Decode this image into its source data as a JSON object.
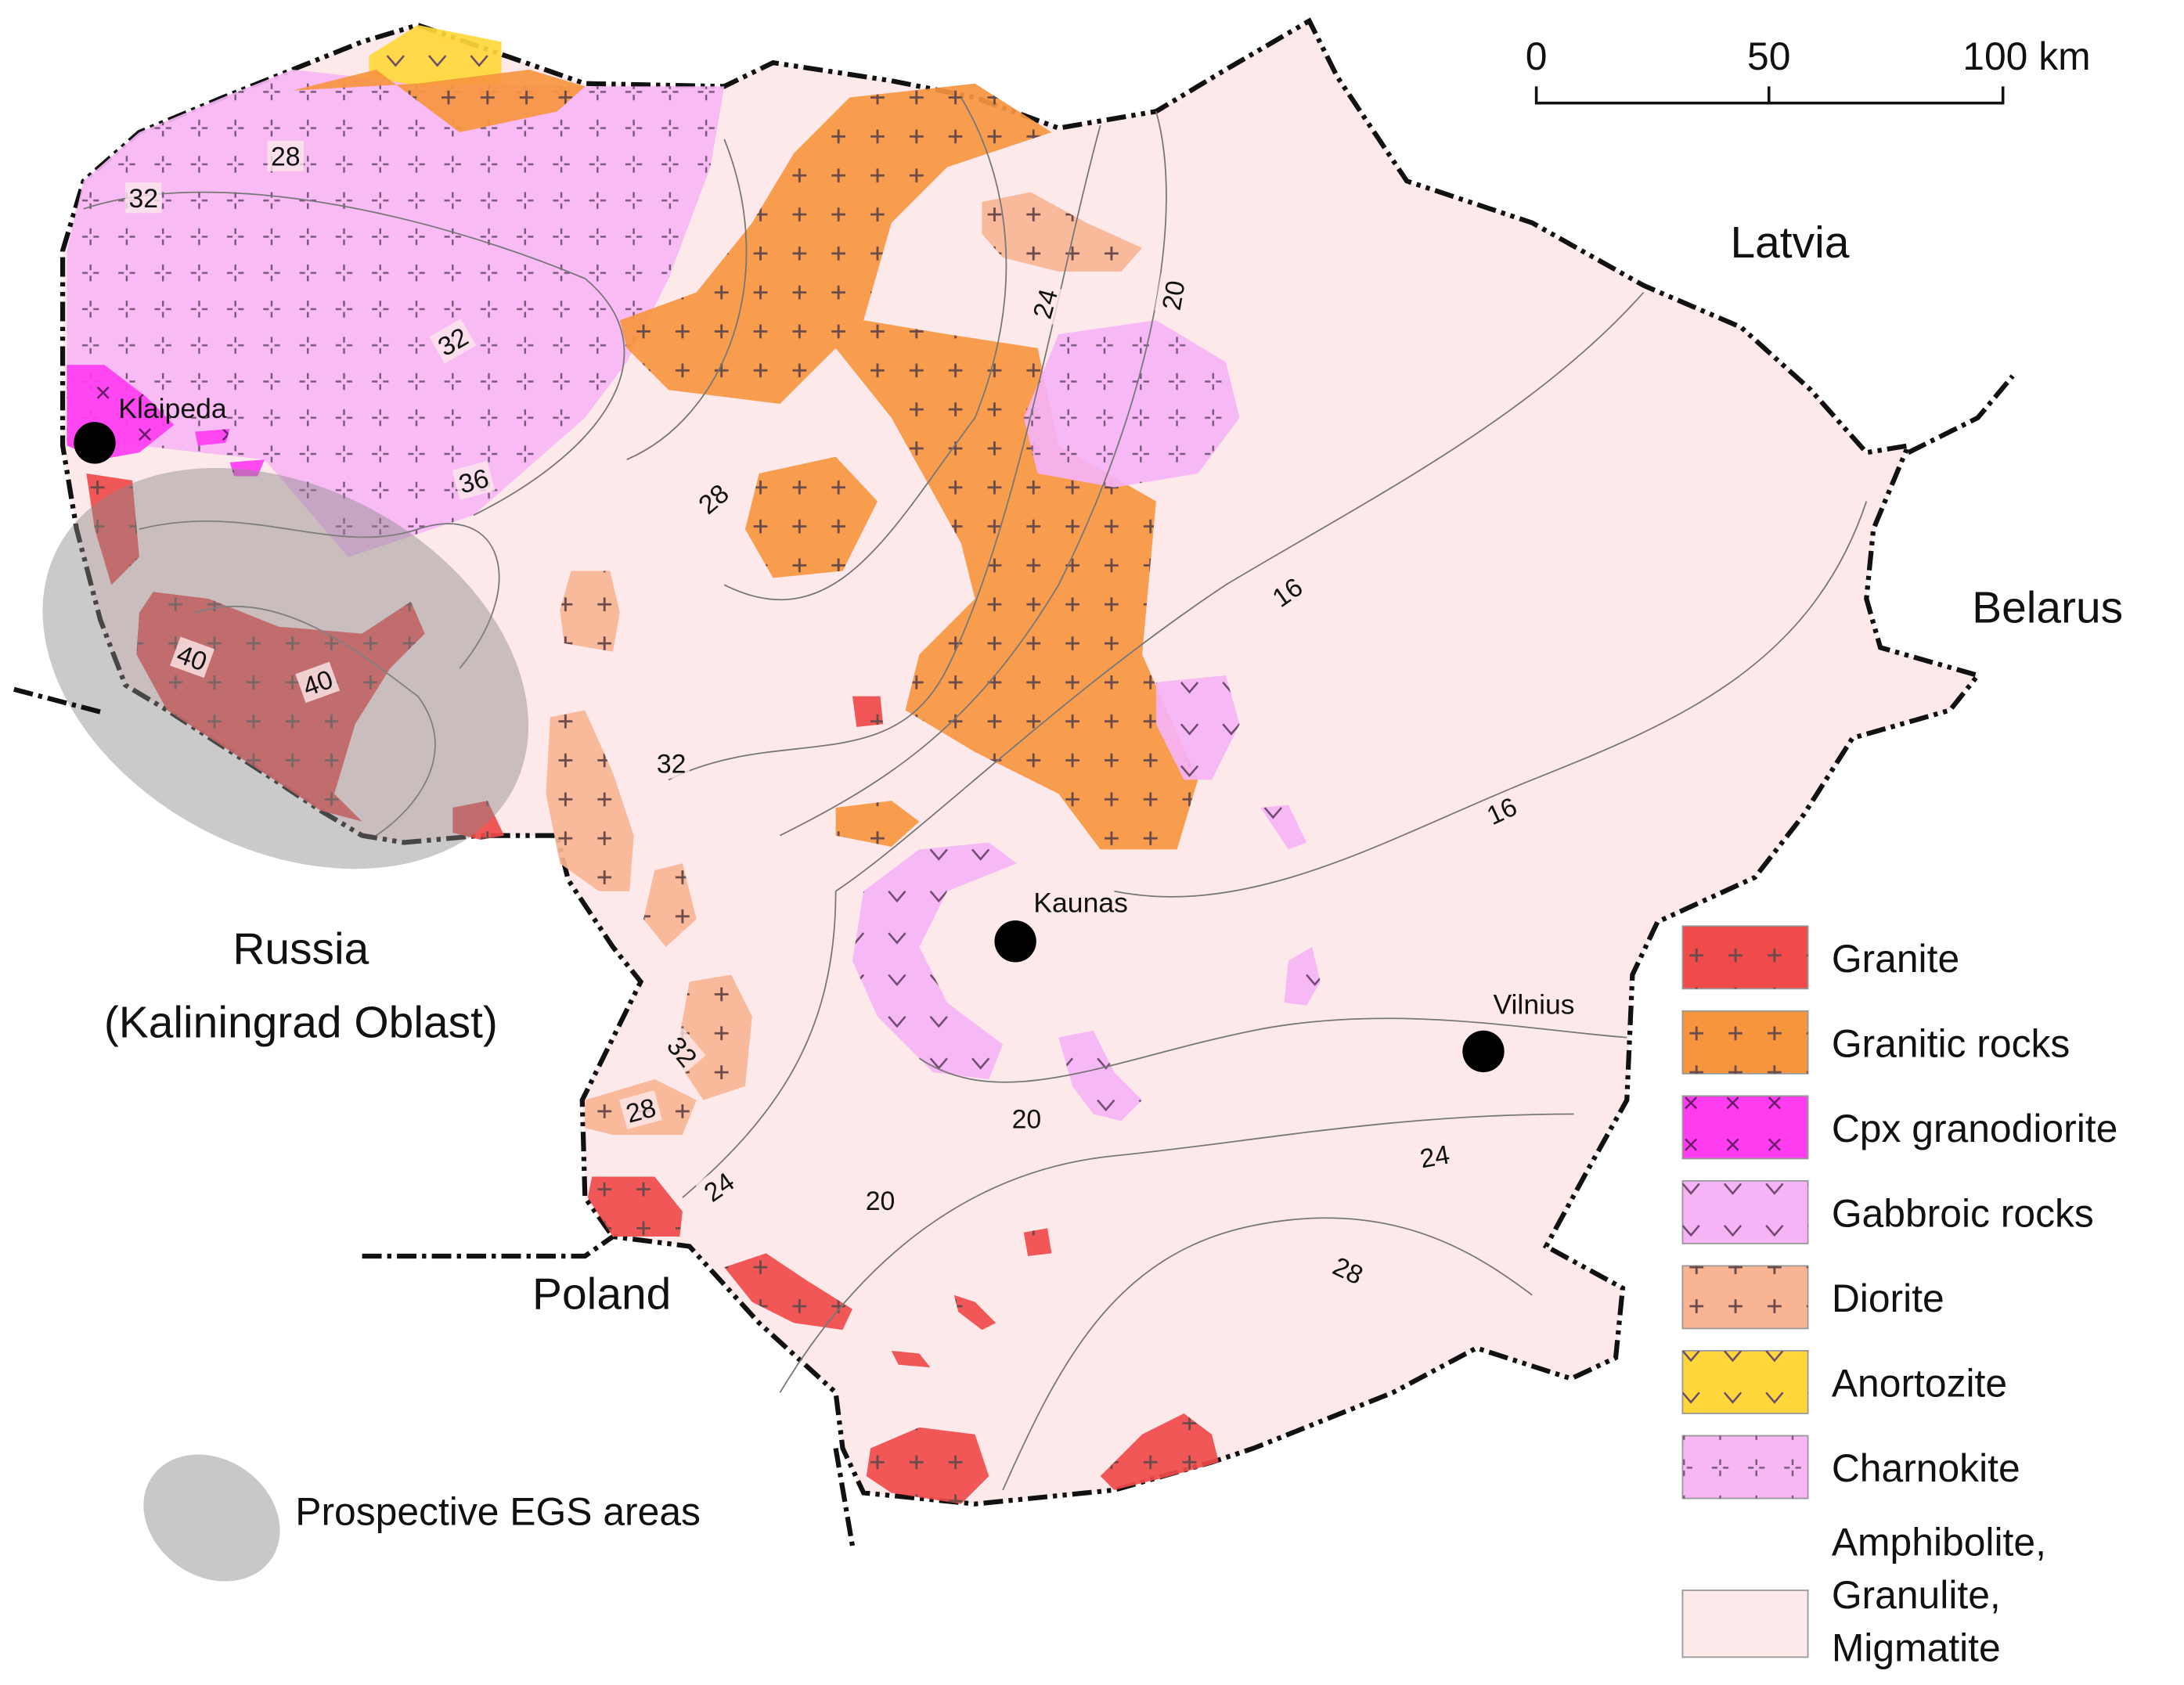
{
  "scale_bar": {
    "ticks": [
      "0",
      "50",
      "100 km"
    ]
  },
  "countries": [
    "Latvia",
    "Belarus",
    "Russia",
    "(Kaliningrad Oblast)",
    "Poland"
  ],
  "cities": [
    "Klaipeda",
    "Kaunas",
    "Vilnius"
  ],
  "contour_labels": [
    "28",
    "32",
    "32",
    "36",
    "40",
    "40",
    "28",
    "24",
    "20",
    "16",
    "16",
    "32",
    "32",
    "28",
    "24",
    "20",
    "20",
    "24",
    "28"
  ],
  "legend": {
    "items": [
      {
        "label": "Granite",
        "color": "#f04a4a"
      },
      {
        "label": "Granitic rocks",
        "color": "#f7953f"
      },
      {
        "label": "Cpx granodiorite",
        "color": "#ff3cf0"
      },
      {
        "label": "Gabbroic rocks",
        "color": "#f6b3f6"
      },
      {
        "label": "Diorite",
        "color": "#f9b494"
      },
      {
        "label": "Anortozite",
        "color": "#ffd73a"
      },
      {
        "label": "Charnokite",
        "color": "#f7b6f4"
      },
      {
        "label": [
          "Amphibolite,",
          "Granulite,",
          "Migmatite"
        ],
        "color": "#fde8ea"
      }
    ],
    "egs": "Prospective EGS areas"
  }
}
